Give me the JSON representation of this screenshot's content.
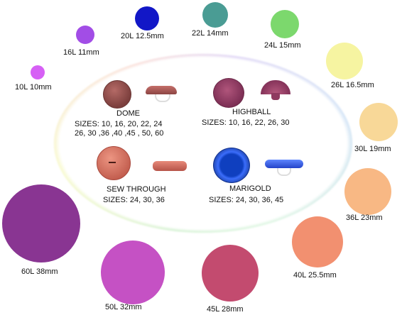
{
  "eye_sizes": [
    {
      "label": "10L 10mm",
      "color": "#d660f5"
    },
    {
      "label": "16L 11mm",
      "color": "#a24de6"
    },
    {
      "label": "20L 12.5mm",
      "color": "#1217c7"
    },
    {
      "label": "22L 14mm",
      "color": "#4a9c94"
    },
    {
      "label": "24L 15mm",
      "color": "#7cd86d"
    },
    {
      "label": "26L 16.5mm",
      "color": "#f6f4a1"
    },
    {
      "label": "30L 19mm",
      "color": "#f8d898"
    },
    {
      "label": "36L 23mm",
      "color": "#f8b884"
    },
    {
      "label": "40L 25.5mm",
      "color": "#f29070"
    },
    {
      "label": "45L 28mm",
      "color": "#c34b6f"
    },
    {
      "label": "50L 32mm",
      "color": "#c551c4"
    },
    {
      "label": "60L 38mm",
      "color": "#893592"
    }
  ],
  "buttons": {
    "dome": {
      "name": "DOME",
      "sizes": "SIZES: 10, 16, 20, 22, 24\n26, 30 ,36 ,40 ,45 , 50, 60"
    },
    "highball": {
      "name": "HIGHBALL",
      "sizes": "SIZES: 10, 16, 22, 26, 30"
    },
    "sew_through": {
      "name": "SEW THROUGH",
      "sizes": "SIZES: 24, 30, 36"
    },
    "marigold": {
      "name": "MARIGOLD",
      "sizes": "SIZES: 24, 30, 36, 45"
    }
  }
}
